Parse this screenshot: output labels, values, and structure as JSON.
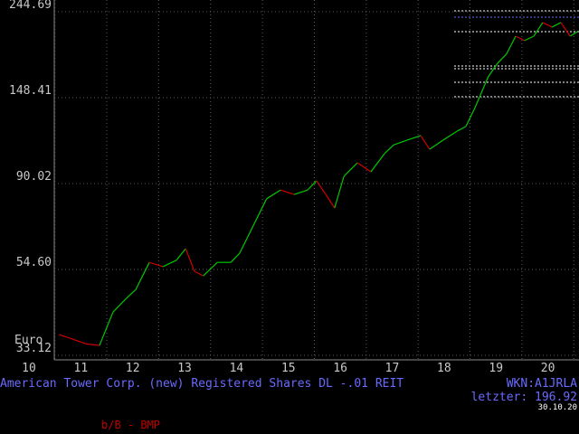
{
  "chart_data": {
    "type": "line",
    "title": "American Tower Corp. (new) Registered Shares DL -.01 REIT",
    "y_unit": "Euro",
    "wkn": "WKN:A1JRLA",
    "last_price": "letzter: 196.92",
    "date": "30.10.20",
    "source": "b/B - BMP",
    "log_scale": true,
    "grid": true,
    "ylim": [
      33.12,
      244.69
    ],
    "yticks": [
      {
        "value": 33.12,
        "label": "33.12"
      },
      {
        "value": 54.6,
        "label": "54.60"
      },
      {
        "value": 90.02,
        "label": "90.02"
      },
      {
        "value": 148.41,
        "label": "148.41"
      },
      {
        "value": 244.69,
        "label": "244.69"
      }
    ],
    "xlim": [
      10,
      20.6
    ],
    "xticks": [
      10,
      11,
      12,
      13,
      14,
      15,
      16,
      17,
      18,
      19,
      20
    ],
    "x": [
      10.58,
      10.84,
      11.1,
      11.36,
      11.62,
      11.88,
      12.06,
      12.32,
      12.58,
      12.84,
      13.02,
      13.19,
      13.36,
      13.63,
      13.89,
      14.06,
      14.32,
      14.58,
      14.85,
      15.11,
      15.37,
      15.54,
      15.72,
      15.89,
      16.07,
      16.33,
      16.59,
      16.85,
      17.03,
      17.29,
      17.55,
      17.72,
      17.98,
      18.25,
      18.42,
      18.59,
      18.85,
      19.03,
      19.2,
      19.38,
      19.55,
      19.73,
      19.9,
      20.08,
      20.25,
      20.43,
      20.57
    ],
    "series": [
      {
        "up_color": "#00c800",
        "down_color": "#d00000",
        "values": [
          37.4,
          36.4,
          35.4,
          35.1,
          42.6,
          46.2,
          48.6,
          56.9,
          55.5,
          57.6,
          61.6,
          54.0,
          52.6,
          56.9,
          56.9,
          60.0,
          70.3,
          82.4,
          86.7,
          84.5,
          86.7,
          91.5,
          84.5,
          78.1,
          93.9,
          101.6,
          96.4,
          107.1,
          112.8,
          115.9,
          119.0,
          109.9,
          115.9,
          122.1,
          125.5,
          139.4,
          167.5,
          181.3,
          191.1,
          212.3,
          206.9,
          212.3,
          229.8,
          223.8,
          229.8,
          212.3,
          217.9
        ]
      }
    ]
  }
}
